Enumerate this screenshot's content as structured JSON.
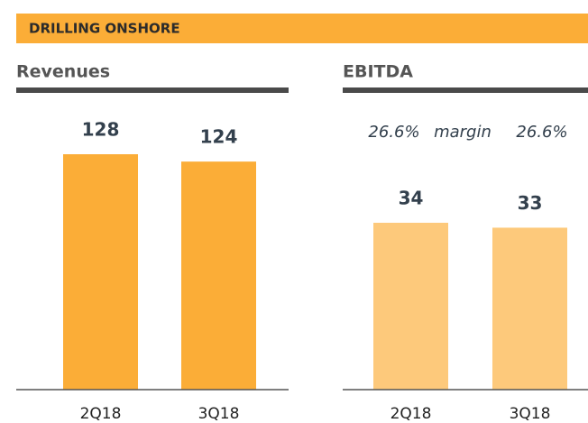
{
  "header": {
    "title": "DRILLING ONSHORE"
  },
  "chart_data": [
    {
      "type": "bar",
      "title": "Revenues",
      "categories": [
        "2Q18",
        "3Q18"
      ],
      "values": [
        128,
        124
      ],
      "color": "#fbad37"
    },
    {
      "type": "bar",
      "title": "EBITDA",
      "annotations": [
        "26.6%",
        "margin",
        "26.6%"
      ],
      "categories": [
        "2Q18",
        "3Q18"
      ],
      "values": [
        34,
        33
      ],
      "color": "#fdc97b"
    }
  ]
}
